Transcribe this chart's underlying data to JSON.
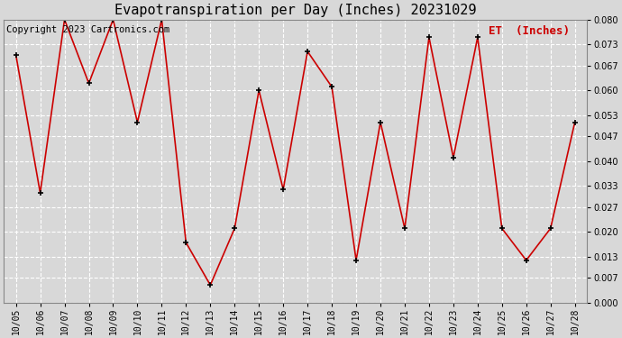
{
  "title": "Evapotranspiration per Day (Inches) 20231029",
  "copyright": "Copyright 2023 Cartronics.com",
  "legend_label": "ET  (Inches)",
  "dates": [
    "10/05",
    "10/06",
    "10/07",
    "10/08",
    "10/09",
    "10/10",
    "10/11",
    "10/12",
    "10/13",
    "10/14",
    "10/15",
    "10/16",
    "10/17",
    "10/18",
    "10/19",
    "10/20",
    "10/21",
    "10/22",
    "10/23",
    "10/24",
    "10/25",
    "10/26",
    "10/27",
    "10/28"
  ],
  "values": [
    0.07,
    0.031,
    0.08,
    0.062,
    0.08,
    0.051,
    0.08,
    0.017,
    0.005,
    0.021,
    0.06,
    0.032,
    0.071,
    0.061,
    0.012,
    0.051,
    0.021,
    0.075,
    0.041,
    0.075,
    0.021,
    0.012,
    0.021,
    0.051
  ],
  "ylim": [
    0.0,
    0.08
  ],
  "yticks": [
    0.0,
    0.007,
    0.013,
    0.02,
    0.027,
    0.033,
    0.04,
    0.047,
    0.053,
    0.06,
    0.067,
    0.073,
    0.08
  ],
  "line_color": "#cc0000",
  "marker_color": "#000000",
  "bg_color": "#d8d8d8",
  "plot_bg_color": "#d8d8d8",
  "grid_color": "#ffffff",
  "title_fontsize": 11,
  "copyright_fontsize": 7.5,
  "legend_fontsize": 9,
  "legend_color": "#cc0000",
  "tick_fontsize": 7,
  "figwidth": 6.9,
  "figheight": 3.75,
  "dpi": 100
}
